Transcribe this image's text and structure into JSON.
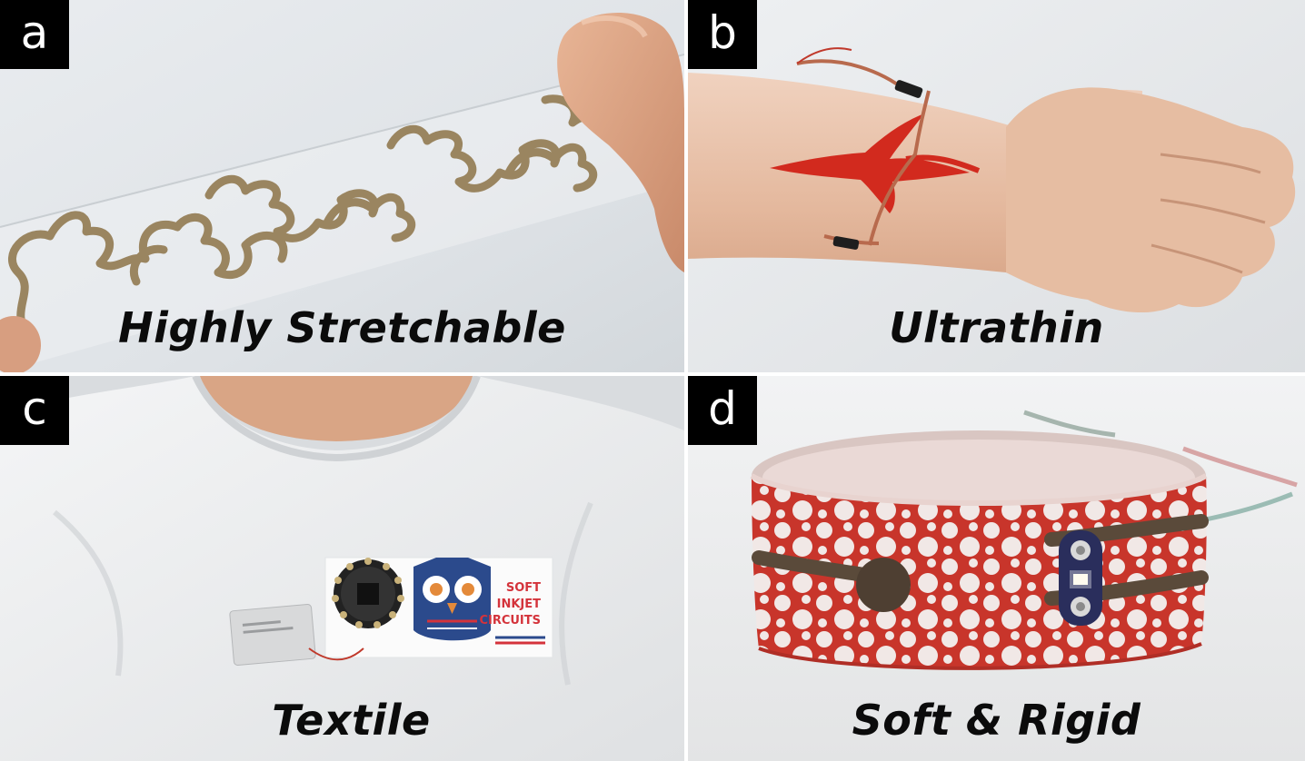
{
  "panels": [
    {
      "letter": "a",
      "caption": "Highly Stretchable"
    },
    {
      "letter": "b",
      "caption": "Ultrathin"
    },
    {
      "letter": "c",
      "caption": "Textile",
      "sticker_lines": [
        "SOFT",
        "INKJET",
        "CIRCUITS"
      ]
    },
    {
      "letter": "d",
      "caption": "Soft & Rigid"
    }
  ],
  "colors": {
    "label_bg": "#000000",
    "label_fg": "#ffffff",
    "caption": "#0b0b0b",
    "conductive_trace": "#9a8560",
    "tattoo_red": "#d22a1e",
    "band_red": "#c8352b"
  }
}
